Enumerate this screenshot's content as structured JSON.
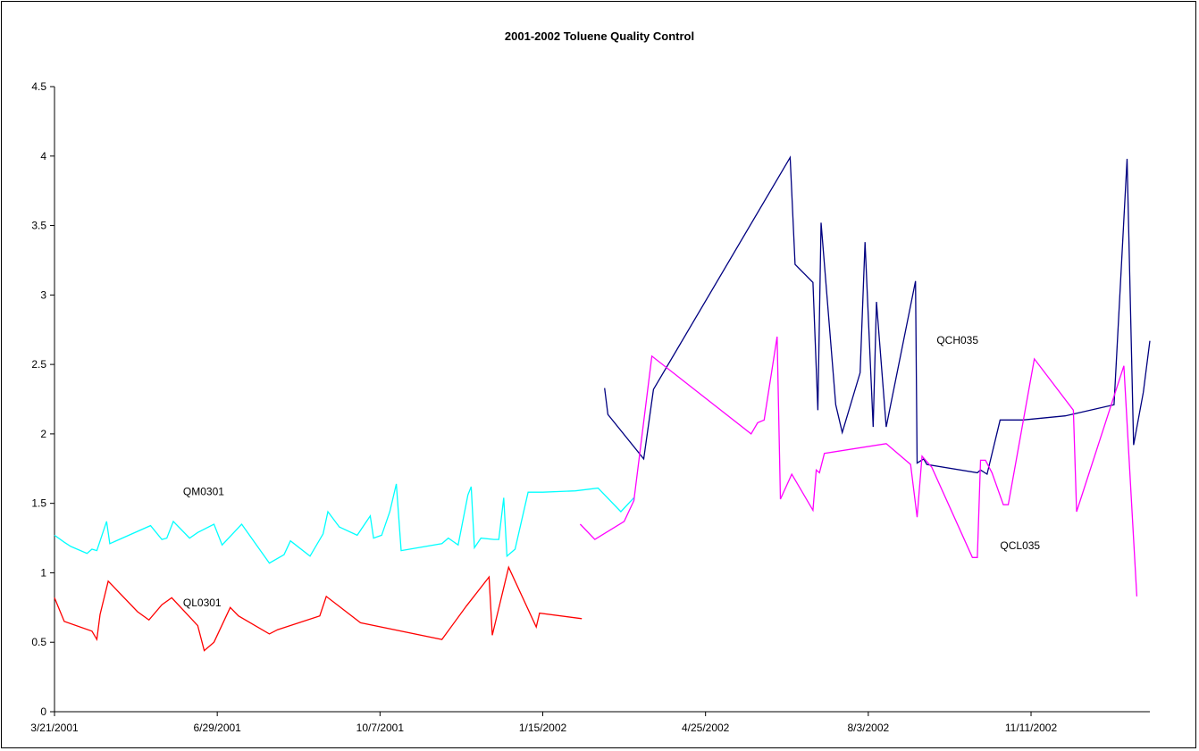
{
  "chart_data": {
    "type": "line",
    "title": "2001-2002 Toluene Quality Control",
    "xlabel": "",
    "ylabel": "",
    "x_axis_type": "date",
    "xlim": [
      "2001-03-21",
      "2003-01-23"
    ],
    "ylim": [
      0,
      4.5
    ],
    "y_ticks": [
      0,
      0.5,
      1,
      1.5,
      2,
      2.5,
      3,
      3.5,
      4,
      4.5
    ],
    "y_tick_labels": [
      "0",
      "0.5",
      "1",
      "1.5",
      "2",
      "2.5",
      "3",
      "3.5",
      "4",
      "4.5"
    ],
    "x_ticks": [
      "2001-03-21",
      "2001-06-29",
      "2001-10-07",
      "2002-01-15",
      "2002-04-25",
      "2002-08-03",
      "2002-11-11"
    ],
    "x_tick_labels": [
      "3/21/2001",
      "6/29/2001",
      "10/7/2001",
      "1/15/2002",
      "4/25/2002",
      "8/3/2002",
      "11/11/2002"
    ],
    "grid": false,
    "legend": "none",
    "series": [
      {
        "name": "QM0301",
        "color": "#00ffff",
        "label_position": {
          "x": "2001-06-08",
          "y": 1.56
        },
        "points": [
          [
            "2001-03-21",
            1.27
          ],
          [
            "2001-03-27",
            1.22
          ],
          [
            "2001-03-31",
            1.19
          ],
          [
            "2001-04-10",
            1.14
          ],
          [
            "2001-04-13",
            1.17
          ],
          [
            "2001-04-16",
            1.16
          ],
          [
            "2001-04-22",
            1.37
          ],
          [
            "2001-04-24",
            1.21
          ],
          [
            "2001-05-19",
            1.34
          ],
          [
            "2001-05-26",
            1.24
          ],
          [
            "2001-05-29",
            1.25
          ],
          [
            "2001-06-02",
            1.37
          ],
          [
            "2001-06-12",
            1.25
          ],
          [
            "2001-06-17",
            1.29
          ],
          [
            "2001-06-27",
            1.35
          ],
          [
            "2001-07-02",
            1.2
          ],
          [
            "2001-07-14",
            1.35
          ],
          [
            "2001-07-31",
            1.07
          ],
          [
            "2001-08-09",
            1.13
          ],
          [
            "2001-08-13",
            1.23
          ],
          [
            "2001-08-25",
            1.12
          ],
          [
            "2001-09-02",
            1.28
          ],
          [
            "2001-09-05",
            1.44
          ],
          [
            "2001-09-12",
            1.33
          ],
          [
            "2001-09-23",
            1.27
          ],
          [
            "2001-10-01",
            1.41
          ],
          [
            "2001-10-03",
            1.25
          ],
          [
            "2001-10-08",
            1.27
          ],
          [
            "2001-10-13",
            1.44
          ],
          [
            "2001-10-17",
            1.64
          ],
          [
            "2001-10-20",
            1.16
          ],
          [
            "2001-11-14",
            1.21
          ],
          [
            "2001-11-18",
            1.25
          ],
          [
            "2001-11-24",
            1.2
          ],
          [
            "2001-11-30",
            1.56
          ],
          [
            "2001-12-02",
            1.62
          ],
          [
            "2001-12-04",
            1.18
          ],
          [
            "2001-12-08",
            1.25
          ],
          [
            "2001-12-16",
            1.24
          ],
          [
            "2001-12-19",
            1.24
          ],
          [
            "2001-12-22",
            1.54
          ],
          [
            "2001-12-24",
            1.12
          ],
          [
            "2001-12-29",
            1.17
          ],
          [
            "2002-01-06",
            1.58
          ],
          [
            "2002-01-15",
            1.58
          ],
          [
            "2002-02-04",
            1.59
          ],
          [
            "2002-02-18",
            1.61
          ],
          [
            "2002-03-04",
            1.44
          ],
          [
            "2002-03-12",
            1.54
          ]
        ]
      },
      {
        "name": "QL0301",
        "color": "#ff0000",
        "label_position": {
          "x": "2001-06-08",
          "y": 0.76
        },
        "points": [
          [
            "2001-03-21",
            0.82
          ],
          [
            "2001-03-27",
            0.65
          ],
          [
            "2001-04-13",
            0.58
          ],
          [
            "2001-04-16",
            0.52
          ],
          [
            "2001-04-18",
            0.7
          ],
          [
            "2001-04-23",
            0.94
          ],
          [
            "2001-05-11",
            0.72
          ],
          [
            "2001-05-18",
            0.66
          ],
          [
            "2001-05-26",
            0.77
          ],
          [
            "2001-06-01",
            0.82
          ],
          [
            "2001-06-17",
            0.62
          ],
          [
            "2001-06-21",
            0.44
          ],
          [
            "2001-06-27",
            0.5
          ],
          [
            "2001-07-07",
            0.75
          ],
          [
            "2001-07-12",
            0.69
          ],
          [
            "2001-07-31",
            0.56
          ],
          [
            "2001-08-05",
            0.59
          ],
          [
            "2001-08-31",
            0.69
          ],
          [
            "2001-09-04",
            0.83
          ],
          [
            "2001-09-25",
            0.64
          ],
          [
            "2001-11-14",
            0.52
          ],
          [
            "2001-11-29",
            0.76
          ],
          [
            "2001-12-13",
            0.97
          ],
          [
            "2001-12-15",
            0.55
          ],
          [
            "2001-12-25",
            1.04
          ],
          [
            "2002-01-11",
            0.61
          ],
          [
            "2002-01-13",
            0.71
          ],
          [
            "2002-02-08",
            0.67
          ]
        ]
      },
      {
        "name": "QCH035",
        "color": "#000080",
        "label_position": {
          "x": "2002-09-14",
          "y": 2.65
        },
        "points": [
          [
            "2002-02-22",
            2.33
          ],
          [
            "2002-02-24",
            2.14
          ],
          [
            "2002-03-18",
            1.82
          ],
          [
            "2002-03-24",
            2.32
          ],
          [
            "2002-06-16",
            3.99
          ],
          [
            "2002-06-19",
            3.22
          ],
          [
            "2002-06-30",
            3.09
          ],
          [
            "2002-07-03",
            2.17
          ],
          [
            "2002-07-05",
            3.52
          ],
          [
            "2002-07-14",
            2.21
          ],
          [
            "2002-07-18",
            2.01
          ],
          [
            "2002-07-29",
            2.44
          ],
          [
            "2002-08-01",
            3.38
          ],
          [
            "2002-08-06",
            2.05
          ],
          [
            "2002-08-08",
            2.95
          ],
          [
            "2002-08-14",
            2.05
          ],
          [
            "2002-09-01",
            3.1
          ],
          [
            "2002-09-02",
            1.79
          ],
          [
            "2002-09-06",
            1.82
          ],
          [
            "2002-09-08",
            1.78
          ],
          [
            "2002-10-09",
            1.72
          ],
          [
            "2002-10-11",
            1.74
          ],
          [
            "2002-10-15",
            1.71
          ],
          [
            "2002-10-23",
            2.1
          ],
          [
            "2002-11-06",
            2.1
          ],
          [
            "2002-12-02",
            2.13
          ],
          [
            "2003-01-01",
            2.21
          ],
          [
            "2003-01-09",
            3.98
          ],
          [
            "2003-01-13",
            1.92
          ],
          [
            "2003-01-19",
            2.3
          ],
          [
            "2003-01-23",
            2.67
          ]
        ]
      },
      {
        "name": "QCL035",
        "color": "#ff00ff",
        "label_position": {
          "x": "2002-10-23",
          "y": 1.17
        },
        "points": [
          [
            "2002-02-07",
            1.35
          ],
          [
            "2002-02-16",
            1.24
          ],
          [
            "2002-03-06",
            1.37
          ],
          [
            "2002-03-12",
            1.52
          ],
          [
            "2002-03-23",
            2.56
          ],
          [
            "2002-05-23",
            2.0
          ],
          [
            "2002-05-27",
            2.08
          ],
          [
            "2002-05-31",
            2.1
          ],
          [
            "2002-06-08",
            2.7
          ],
          [
            "2002-06-10",
            1.53
          ],
          [
            "2002-06-17",
            1.71
          ],
          [
            "2002-06-30",
            1.45
          ],
          [
            "2002-07-02",
            1.74
          ],
          [
            "2002-07-04",
            1.72
          ],
          [
            "2002-07-07",
            1.86
          ],
          [
            "2002-08-14",
            1.93
          ],
          [
            "2002-08-29",
            1.78
          ],
          [
            "2002-09-02",
            1.4
          ],
          [
            "2002-09-05",
            1.84
          ],
          [
            "2002-09-11",
            1.76
          ],
          [
            "2002-10-06",
            1.11
          ],
          [
            "2002-10-09",
            1.11
          ],
          [
            "2002-10-11",
            1.81
          ],
          [
            "2002-10-14",
            1.81
          ],
          [
            "2002-10-18",
            1.72
          ],
          [
            "2002-10-25",
            1.49
          ],
          [
            "2002-10-28",
            1.49
          ],
          [
            "2002-11-13",
            2.54
          ],
          [
            "2002-12-07",
            2.17
          ],
          [
            "2002-12-09",
            1.44
          ],
          [
            "2003-01-07",
            2.49
          ],
          [
            "2003-01-15",
            0.83
          ]
        ]
      }
    ]
  }
}
